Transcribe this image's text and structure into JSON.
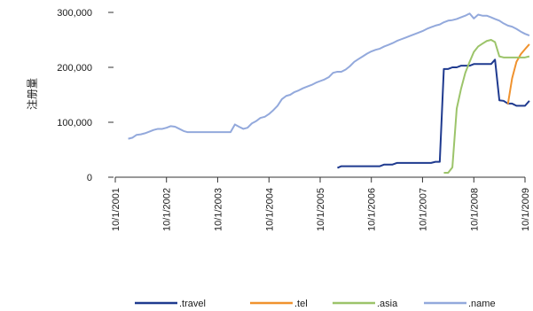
{
  "chart_data": {
    "type": "line",
    "ylabel": "注册量",
    "xlabel": "",
    "ylim": [
      0,
      300000
    ],
    "yticks": [
      {
        "value": 0,
        "label": "0"
      },
      {
        "value": 100000,
        "label": "100,000"
      },
      {
        "value": 200000,
        "label": "200,000"
      },
      {
        "value": 300000,
        "label": "300,000"
      }
    ],
    "xlim": [
      "2001-10-01",
      "2009-10-01"
    ],
    "xticks": [
      {
        "value": "2001-10-01",
        "label": "10/1/2001"
      },
      {
        "value": "2002-10-01",
        "label": "10/1/2002"
      },
      {
        "value": "2003-10-01",
        "label": "10/1/2003"
      },
      {
        "value": "2004-10-01",
        "label": "10/1/2004"
      },
      {
        "value": "2005-10-01",
        "label": "10/1/2005"
      },
      {
        "value": "2006-10-01",
        "label": "10/1/2006"
      },
      {
        "value": "2007-10-01",
        "label": "10/1/2007"
      },
      {
        "value": "2008-10-01",
        "label": "10/1/2008"
      },
      {
        "value": "2009-10-01",
        "label": "10/1/2009"
      }
    ],
    "legend_position": "bottom",
    "series": [
      {
        "name": ".travel",
        "color": "#1f3a8f",
        "points": [
          [
            "2006-02-01",
            17000
          ],
          [
            "2006-03-01",
            20000
          ],
          [
            "2006-06-01",
            20000
          ],
          [
            "2006-09-01",
            20000
          ],
          [
            "2006-12-01",
            20000
          ],
          [
            "2007-01-01",
            23000
          ],
          [
            "2007-03-01",
            23000
          ],
          [
            "2007-04-01",
            26000
          ],
          [
            "2007-07-01",
            26000
          ],
          [
            "2007-10-01",
            26000
          ],
          [
            "2007-12-01",
            26000
          ],
          [
            "2008-01-01",
            28000
          ],
          [
            "2008-02-01",
            28000
          ],
          [
            "2008-03-01",
            197000
          ],
          [
            "2008-04-01",
            197000
          ],
          [
            "2008-05-01",
            200000
          ],
          [
            "2008-06-01",
            200000
          ],
          [
            "2008-07-01",
            203000
          ],
          [
            "2008-08-01",
            203000
          ],
          [
            "2008-09-01",
            203000
          ],
          [
            "2008-10-01",
            206000
          ],
          [
            "2008-12-01",
            206000
          ],
          [
            "2009-01-01",
            206000
          ],
          [
            "2009-02-01",
            206000
          ],
          [
            "2009-03-01",
            214000
          ],
          [
            "2009-04-01",
            140000
          ],
          [
            "2009-05-01",
            139000
          ],
          [
            "2009-06-01",
            134000
          ],
          [
            "2009-07-01",
            134000
          ],
          [
            "2009-08-01",
            130000
          ],
          [
            "2009-09-01",
            130000
          ],
          [
            "2009-10-01",
            130000
          ],
          [
            "2009-11-01",
            139000
          ]
        ]
      },
      {
        "name": ".tel",
        "color": "#f0922e",
        "points": [
          [
            "2009-06-01",
            133000
          ],
          [
            "2009-07-01",
            180000
          ],
          [
            "2009-08-01",
            210000
          ],
          [
            "2009-09-01",
            224000
          ],
          [
            "2009-10-01",
            233000
          ],
          [
            "2009-11-01",
            242000
          ]
        ]
      },
      {
        "name": ".asia",
        "color": "#9cc46a",
        "points": [
          [
            "2008-03-01",
            8000
          ],
          [
            "2008-04-01",
            8000
          ],
          [
            "2008-05-01",
            18000
          ],
          [
            "2008-06-01",
            125000
          ],
          [
            "2008-07-01",
            160000
          ],
          [
            "2008-08-01",
            190000
          ],
          [
            "2008-09-01",
            210000
          ],
          [
            "2008-10-01",
            228000
          ],
          [
            "2008-11-01",
            238000
          ],
          [
            "2008-12-01",
            243000
          ],
          [
            "2009-01-01",
            248000
          ],
          [
            "2009-02-01",
            250000
          ],
          [
            "2009-03-01",
            246000
          ],
          [
            "2009-04-01",
            220000
          ],
          [
            "2009-05-01",
            218000
          ],
          [
            "2009-06-01",
            218000
          ],
          [
            "2009-07-01",
            218000
          ],
          [
            "2009-08-01",
            218000
          ],
          [
            "2009-09-01",
            218000
          ],
          [
            "2009-10-01",
            218000
          ],
          [
            "2009-11-01",
            220000
          ]
        ]
      },
      {
        "name": ".name",
        "color": "#93a9dc",
        "points": [
          [
            "2002-01-01",
            70000
          ],
          [
            "2002-02-01",
            72000
          ],
          [
            "2002-03-01",
            77000
          ],
          [
            "2002-04-01",
            78000
          ],
          [
            "2002-05-01",
            80000
          ],
          [
            "2002-06-01",
            83000
          ],
          [
            "2002-07-01",
            86000
          ],
          [
            "2002-08-01",
            88000
          ],
          [
            "2002-09-01",
            88000
          ],
          [
            "2002-10-01",
            90000
          ],
          [
            "2002-11-01",
            93000
          ],
          [
            "2002-12-01",
            92000
          ],
          [
            "2003-01-01",
            88000
          ],
          [
            "2003-02-01",
            84000
          ],
          [
            "2003-03-01",
            82000
          ],
          [
            "2003-04-01",
            82000
          ],
          [
            "2003-06-01",
            82000
          ],
          [
            "2003-08-01",
            82000
          ],
          [
            "2003-10-01",
            82000
          ],
          [
            "2003-12-01",
            82000
          ],
          [
            "2004-01-01",
            82000
          ],
          [
            "2004-02-01",
            96000
          ],
          [
            "2004-03-01",
            92000
          ],
          [
            "2004-04-01",
            88000
          ],
          [
            "2004-05-01",
            90000
          ],
          [
            "2004-06-01",
            98000
          ],
          [
            "2004-07-01",
            102000
          ],
          [
            "2004-08-01",
            108000
          ],
          [
            "2004-09-01",
            110000
          ],
          [
            "2004-10-01",
            115000
          ],
          [
            "2004-11-01",
            122000
          ],
          [
            "2004-12-01",
            130000
          ],
          [
            "2005-01-01",
            142000
          ],
          [
            "2005-02-01",
            148000
          ],
          [
            "2005-03-01",
            150000
          ],
          [
            "2005-04-01",
            155000
          ],
          [
            "2005-05-01",
            158000
          ],
          [
            "2005-06-01",
            162000
          ],
          [
            "2005-07-01",
            165000
          ],
          [
            "2005-08-01",
            168000
          ],
          [
            "2005-09-01",
            172000
          ],
          [
            "2005-10-01",
            175000
          ],
          [
            "2005-11-01",
            178000
          ],
          [
            "2005-12-01",
            182000
          ],
          [
            "2006-01-01",
            190000
          ],
          [
            "2006-02-01",
            192000
          ],
          [
            "2006-03-01",
            192000
          ],
          [
            "2006-04-01",
            196000
          ],
          [
            "2006-05-01",
            202000
          ],
          [
            "2006-06-01",
            210000
          ],
          [
            "2006-07-01",
            215000
          ],
          [
            "2006-08-01",
            220000
          ],
          [
            "2006-09-01",
            225000
          ],
          [
            "2006-10-01",
            229000
          ],
          [
            "2006-11-01",
            232000
          ],
          [
            "2006-12-01",
            234000
          ],
          [
            "2007-01-01",
            238000
          ],
          [
            "2007-02-01",
            241000
          ],
          [
            "2007-03-01",
            244000
          ],
          [
            "2007-04-01",
            248000
          ],
          [
            "2007-05-01",
            251000
          ],
          [
            "2007-06-01",
            254000
          ],
          [
            "2007-07-01",
            257000
          ],
          [
            "2007-08-01",
            260000
          ],
          [
            "2007-09-01",
            263000
          ],
          [
            "2007-10-01",
            266000
          ],
          [
            "2007-11-01",
            270000
          ],
          [
            "2007-12-01",
            273000
          ],
          [
            "2008-01-01",
            276000
          ],
          [
            "2008-02-01",
            278000
          ],
          [
            "2008-03-01",
            282000
          ],
          [
            "2008-04-01",
            285000
          ],
          [
            "2008-05-01",
            286000
          ],
          [
            "2008-06-01",
            288000
          ],
          [
            "2008-07-01",
            291000
          ],
          [
            "2008-08-01",
            294000
          ],
          [
            "2008-09-01",
            298000
          ],
          [
            "2008-10-01",
            289000
          ],
          [
            "2008-11-01",
            296000
          ],
          [
            "2008-12-01",
            294000
          ],
          [
            "2009-01-01",
            294000
          ],
          [
            "2009-02-01",
            291000
          ],
          [
            "2009-03-01",
            288000
          ],
          [
            "2009-04-01",
            285000
          ],
          [
            "2009-05-01",
            280000
          ],
          [
            "2009-06-01",
            276000
          ],
          [
            "2009-07-01",
            274000
          ],
          [
            "2009-08-01",
            270000
          ],
          [
            "2009-09-01",
            265000
          ],
          [
            "2009-10-01",
            261000
          ],
          [
            "2009-11-01",
            258000
          ]
        ]
      }
    ]
  }
}
